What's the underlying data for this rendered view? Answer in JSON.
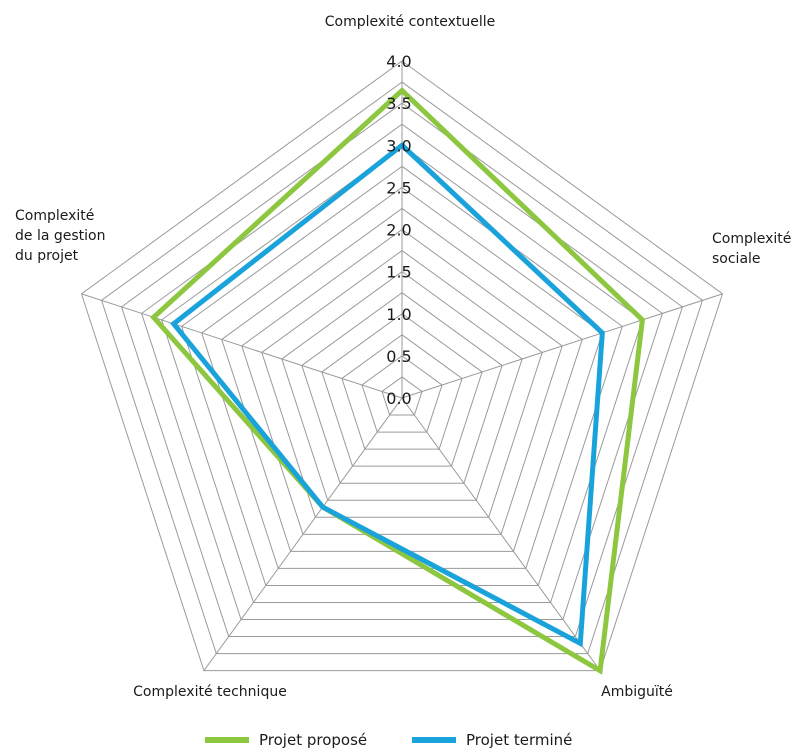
{
  "chart_data": {
    "type": "radar",
    "title": "",
    "axes": [
      {
        "name": "contextuelle",
        "label_lines": [
          "Complexité contextuelle"
        ]
      },
      {
        "name": "sociale",
        "label_lines": [
          "Complexité",
          "sociale"
        ]
      },
      {
        "name": "ambiguite",
        "label_lines": [
          "Ambiguïté"
        ]
      },
      {
        "name": "technique",
        "label_lines": [
          "Complexité technique"
        ]
      },
      {
        "name": "gestion",
        "label_lines": [
          "Complexité",
          "de la gestion",
          "du projet"
        ]
      }
    ],
    "ticks": [
      "0.0",
      "0.5",
      "1.0",
      "1.5",
      "2.0",
      "2.5",
      "3.0",
      "3.5",
      "4.0"
    ],
    "range": [
      0,
      4
    ],
    "grid_step": 0.25,
    "series": [
      {
        "name": "Projet proposé",
        "color": "#8dc63f",
        "values": [
          3.65,
          3.0,
          4.0,
          1.6,
          3.1
        ]
      },
      {
        "name": "Projet terminé",
        "color": "#1aa3db",
        "values": [
          3.0,
          2.5,
          3.6,
          1.6,
          2.85
        ]
      }
    ],
    "legend_position": "bottom"
  }
}
